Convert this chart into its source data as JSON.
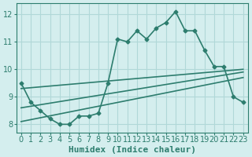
{
  "xlabel": "Humidex (Indice chaleur)",
  "background_color": "#d4eeee",
  "grid_color": "#b0d8d8",
  "line_color": "#2d7d6e",
  "xlim": [
    -0.5,
    23.5
  ],
  "ylim": [
    7.7,
    12.4
  ],
  "yticks": [
    8,
    9,
    10,
    11,
    12
  ],
  "xticks": [
    0,
    1,
    2,
    3,
    4,
    5,
    6,
    7,
    8,
    9,
    10,
    11,
    12,
    13,
    14,
    15,
    16,
    17,
    18,
    19,
    20,
    21,
    22,
    23
  ],
  "x_main": [
    0,
    1,
    2,
    3,
    4,
    5,
    6,
    7,
    8,
    9,
    10,
    11,
    12,
    13,
    14,
    15,
    16,
    17,
    18,
    19,
    20,
    21,
    22,
    23
  ],
  "main_series": [
    9.5,
    8.8,
    8.5,
    8.2,
    8.0,
    8.0,
    8.3,
    8.3,
    8.4,
    9.5,
    11.1,
    11.0,
    11.4,
    11.1,
    11.5,
    11.7,
    12.1,
    11.4,
    11.4,
    10.7,
    10.1,
    10.1,
    9.0,
    8.8
  ],
  "trend_line1_x": [
    0,
    23
  ],
  "trend_line1_y": [
    9.3,
    10.0
  ],
  "trend_line2_x": [
    0,
    23
  ],
  "trend_line2_y": [
    8.6,
    9.9
  ],
  "trend_line3_x": [
    0,
    23
  ],
  "trend_line3_y": [
    8.1,
    9.7
  ],
  "marker_style": "D",
  "marker_size": 2.5,
  "line_width": 1.2,
  "tick_fontsize": 7,
  "xlabel_fontsize": 8
}
